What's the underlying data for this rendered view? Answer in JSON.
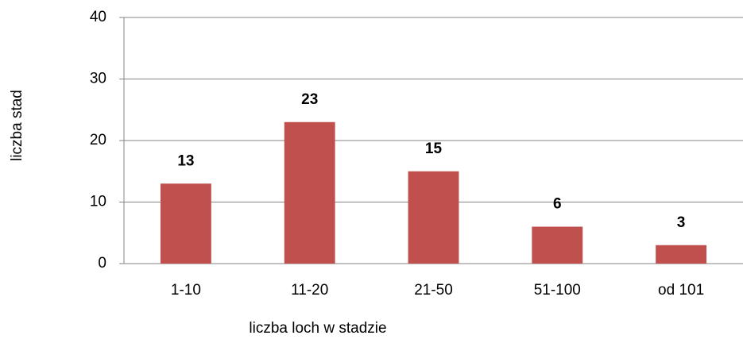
{
  "chart_data": {
    "type": "bar",
    "categories": [
      "1-10",
      "11-20",
      "21-50",
      "51-100",
      "od 101"
    ],
    "values": [
      13,
      23,
      15,
      6,
      3
    ],
    "color": "#c0504d",
    "ylim": [
      0,
      40
    ],
    "yticks": [
      0,
      10,
      20,
      30,
      40
    ],
    "grid": true,
    "xlabel": "liczba loch w stadzie",
    "ylabel": "liczba stad"
  }
}
